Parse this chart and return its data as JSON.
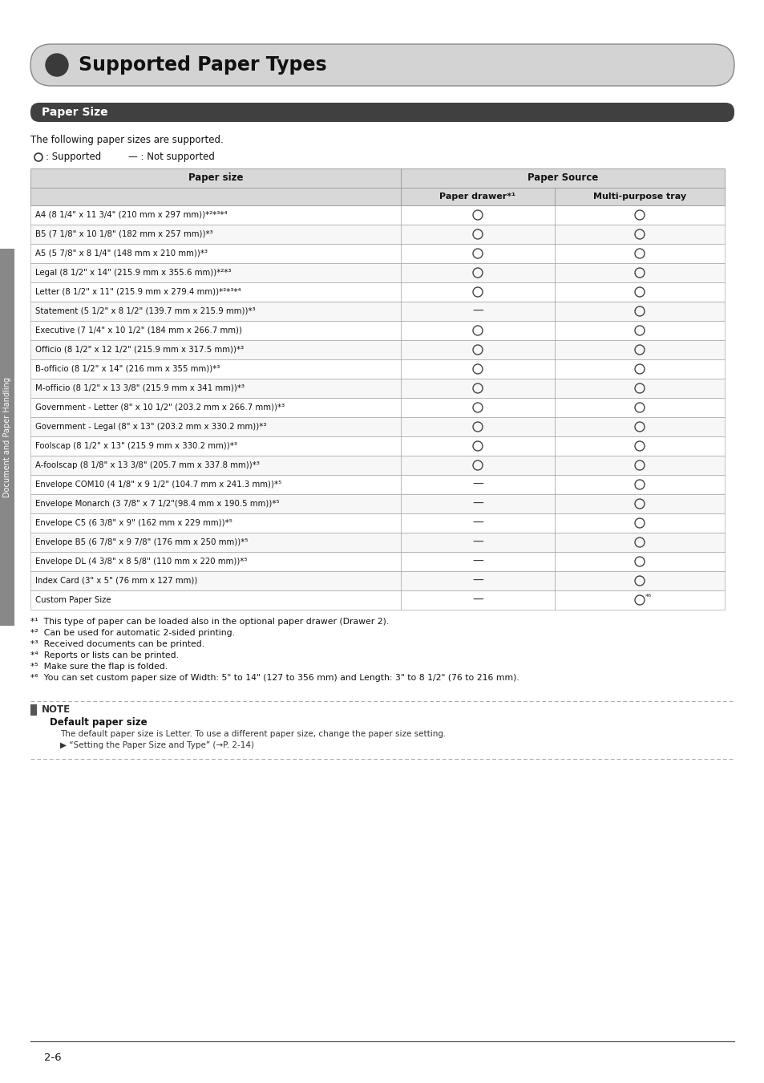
{
  "title": "Supported Paper Types",
  "section_title": "Paper Size",
  "intro_text": "The following paper sizes are supported.",
  "table_header_col1": "Paper size",
  "table_header_source": "Paper Source",
  "table_header_col2": "Paper drawer*¹",
  "table_header_col3": "Multi-purpose tray",
  "rows": [
    [
      "A4 (8 1/4\" x 11 3/4\" (210 mm x 297 mm))*²*³*⁴",
      "O",
      "O"
    ],
    [
      "B5 (7 1/8\" x 10 1/8\" (182 mm x 257 mm))*³",
      "O",
      "O"
    ],
    [
      "A5 (5 7/8\" x 8 1/4\" (148 mm x 210 mm))*³",
      "O",
      "O"
    ],
    [
      "Legal (8 1/2\" x 14\" (215.9 mm x 355.6 mm))*²*³",
      "O",
      "O"
    ],
    [
      "Letter (8 1/2\" x 11\" (215.9 mm x 279.4 mm))*²*³*⁴",
      "O",
      "O"
    ],
    [
      "Statement (5 1/2\" x 8 1/2\" (139.7 mm x 215.9 mm))*³",
      "—",
      "O"
    ],
    [
      "Executive (7 1/4\" x 10 1/2\" (184 mm x 266.7 mm))",
      "O",
      "O"
    ],
    [
      "Officio (8 1/2\" x 12 1/2\" (215.9 mm x 317.5 mm))*³",
      "O",
      "O"
    ],
    [
      "B-officio (8 1/2\" x 14\" (216 mm x 355 mm))*³",
      "O",
      "O"
    ],
    [
      "M-officio (8 1/2\" x 13 3/8\" (215.9 mm x 341 mm))*³",
      "O",
      "O"
    ],
    [
      "Government - Letter (8\" x 10 1/2\" (203.2 mm x 266.7 mm))*³",
      "O",
      "O"
    ],
    [
      "Government - Legal (8\" x 13\" (203.2 mm x 330.2 mm))*³",
      "O",
      "O"
    ],
    [
      "Foolscap (8 1/2\" x 13\" (215.9 mm x 330.2 mm))*³",
      "O",
      "O"
    ],
    [
      "A-foolscap (8 1/8\" x 13 3/8\" (205.7 mm x 337.8 mm))*³",
      "O",
      "O"
    ],
    [
      "Envelope COM10 (4 1/8\" x 9 1/2\" (104.7 mm x 241.3 mm))*⁵",
      "—",
      "O"
    ],
    [
      "Envelope Monarch (3 7/8\" x 7 1/2\"(98.4 mm x 190.5 mm))*⁵",
      "—",
      "O"
    ],
    [
      "Envelope C5 (6 3/8\" x 9\" (162 mm x 229 mm))*⁵",
      "—",
      "O"
    ],
    [
      "Envelope B5 (6 7/8\" x 9 7/8\" (176 mm x 250 mm))*⁵",
      "—",
      "O"
    ],
    [
      "Envelope DL (4 3/8\" x 8 5/8\" (110 mm x 220 mm))*⁵",
      "—",
      "O"
    ],
    [
      "Index Card (3\" x 5\" (76 mm x 127 mm))",
      "—",
      "O"
    ],
    [
      "Custom Paper Size",
      "—",
      "O*⁶"
    ]
  ],
  "footnotes": [
    "*¹  This type of paper can be loaded also in the optional paper drawer (Drawer 2).",
    "*²  Can be used for automatic 2-sided printing.",
    "*³  Received documents can be printed.",
    "*⁴  Reports or lists can be printed.",
    "*⁵  Make sure the flap is folded.",
    "*⁶  You can set custom paper size of Width: 5\" to 14\" (127 to 356 mm) and Length: 3\" to 8 1/2\" (76 to 216 mm)."
  ],
  "note_title": "NOTE",
  "note_subtitle": "Default paper size",
  "note_text1": "The default paper size is Letter. To use a different paper size, change the paper size setting.",
  "note_text2": "▶ “Setting the Paper Size and Type” (→P. 2-14)",
  "page_number": "2-6",
  "sidebar_text": "Document and Paper Handling",
  "bg_color": "#ffffff",
  "title_bg_color": "#d3d3d3",
  "title_dot_color": "#3a3a3a",
  "section_bg_color": "#404040",
  "section_text_color": "#ffffff",
  "table_header_bg": "#d8d8d8",
  "table_border_color": "#999999",
  "sidebar_bg": "#888888"
}
